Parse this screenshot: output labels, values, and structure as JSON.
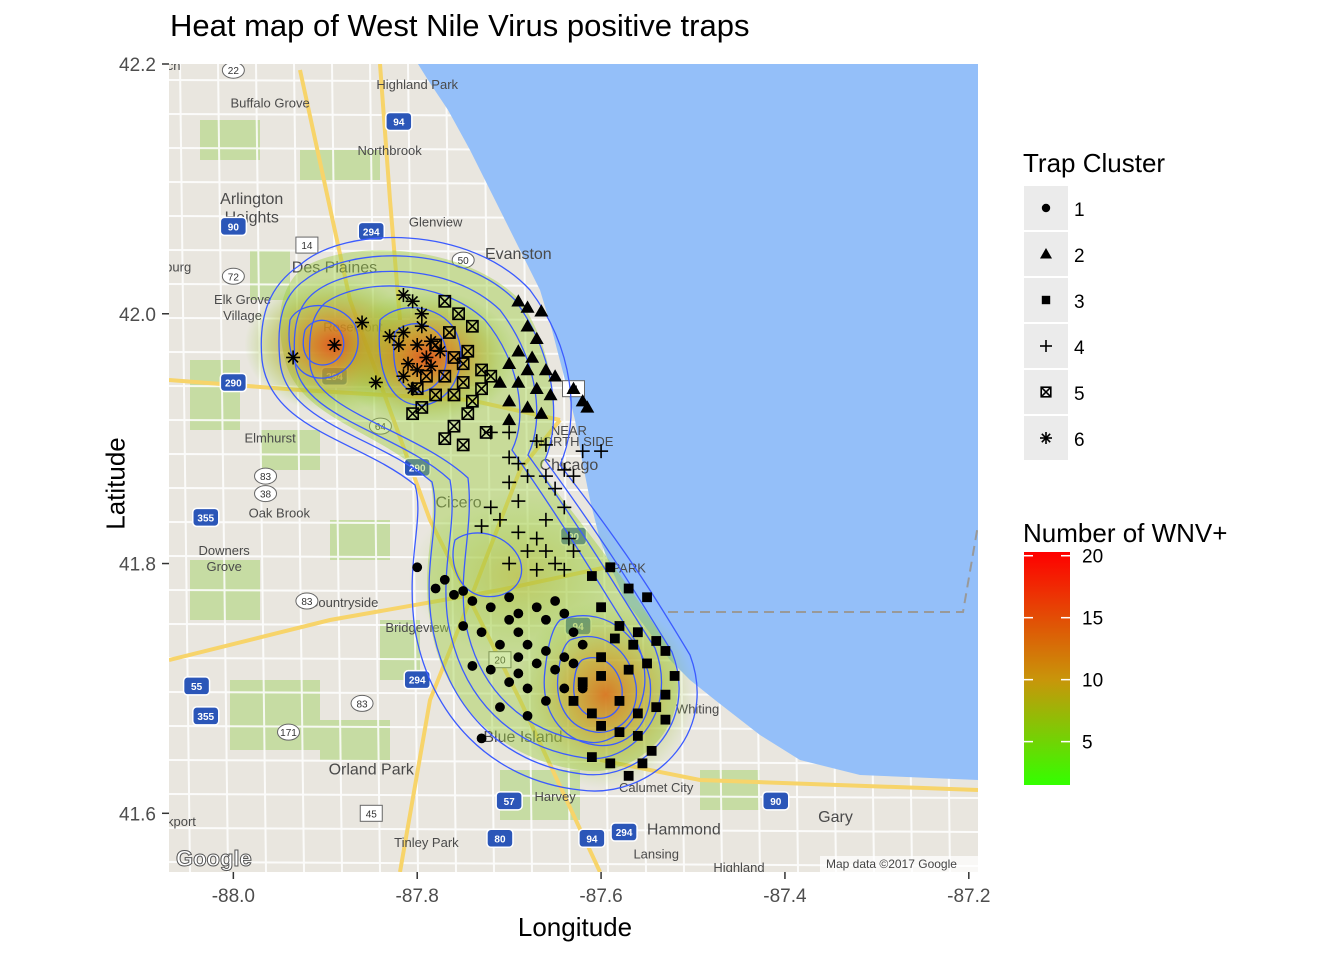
{
  "title": "Heat map of West Nile Virus positive traps",
  "chart_data": {
    "type": "scatter",
    "overlay": "density-heatmap-on-road-map",
    "xlabel": "Longitude",
    "ylabel": "Latitude",
    "xlim": [
      -88.07,
      -87.19
    ],
    "ylim": [
      41.553,
      42.2
    ],
    "x_ticks": [
      -88.0,
      -87.8,
      -87.6,
      -87.4,
      -87.2
    ],
    "x_tick_labels": [
      "-88.0",
      "-87.8",
      "-87.6",
      "-87.4",
      "-87.2"
    ],
    "y_ticks": [
      41.6,
      41.8,
      42.0,
      42.2
    ],
    "y_tick_labels": [
      "41.6",
      "41.8",
      "42.0",
      "42.2"
    ],
    "grid": false,
    "legend_shape": {
      "title": "Trap Cluster",
      "position": "right",
      "entries": [
        {
          "label": "1",
          "shape": "circle"
        },
        {
          "label": "2",
          "shape": "triangle"
        },
        {
          "label": "3",
          "shape": "square"
        },
        {
          "label": "4",
          "shape": "plus"
        },
        {
          "label": "5",
          "shape": "boxed-x"
        },
        {
          "label": "6",
          "shape": "asterisk"
        }
      ]
    },
    "legend_fill": {
      "title": "Number of WNV+",
      "position": "right",
      "min": 1.5,
      "max": 20.3,
      "ticks": [
        5,
        10,
        15,
        20
      ],
      "tick_labels": [
        "5",
        "10",
        "15",
        "20"
      ],
      "low_color": "#33ff00",
      "mid_color": "#c8960a",
      "high_color": "#ff0000"
    },
    "hotspots": [
      {
        "lon": -87.89,
        "lat": 41.975,
        "peak": 18
      },
      {
        "lon": -87.79,
        "lat": 41.965,
        "peak": 17
      },
      {
        "lon": -87.595,
        "lat": 41.695,
        "peak": 16
      },
      {
        "lon": -87.69,
        "lat": 41.79,
        "peak": 6
      }
    ],
    "series": [
      {
        "name": "1",
        "shape": "circle",
        "points": [
          [
            -87.8,
            41.797
          ],
          [
            -87.78,
            41.78
          ],
          [
            -87.77,
            41.787
          ],
          [
            -87.76,
            41.775
          ],
          [
            -87.75,
            41.778
          ],
          [
            -87.74,
            41.77
          ],
          [
            -87.72,
            41.765
          ],
          [
            -87.7,
            41.773
          ],
          [
            -87.69,
            41.76
          ],
          [
            -87.67,
            41.765
          ],
          [
            -87.66,
            41.755
          ],
          [
            -87.65,
            41.77
          ],
          [
            -87.64,
            41.76
          ],
          [
            -87.63,
            41.745
          ],
          [
            -87.62,
            41.735
          ],
          [
            -87.75,
            41.75
          ],
          [
            -87.73,
            41.745
          ],
          [
            -87.71,
            41.735
          ],
          [
            -87.69,
            41.725
          ],
          [
            -87.67,
            41.72
          ],
          [
            -87.65,
            41.715
          ],
          [
            -87.63,
            41.72
          ],
          [
            -87.72,
            41.715
          ],
          [
            -87.7,
            41.705
          ],
          [
            -87.68,
            41.7
          ],
          [
            -87.66,
            41.69
          ],
          [
            -87.64,
            41.7
          ],
          [
            -87.74,
            41.718
          ],
          [
            -87.69,
            41.745
          ],
          [
            -87.68,
            41.735
          ],
          [
            -87.71,
            41.685
          ],
          [
            -87.68,
            41.678
          ],
          [
            -87.73,
            41.66
          ],
          [
            -87.62,
            41.7
          ],
          [
            -87.7,
            41.755
          ],
          [
            -87.66,
            41.73
          ],
          [
            -87.64,
            41.725
          ],
          [
            -87.69,
            41.712
          ]
        ]
      },
      {
        "name": "2",
        "shape": "triangle",
        "points": [
          [
            -87.69,
            42.01
          ],
          [
            -87.68,
            42.005
          ],
          [
            -87.665,
            42.002
          ],
          [
            -87.68,
            41.99
          ],
          [
            -87.67,
            41.98
          ],
          [
            -87.69,
            41.97
          ],
          [
            -87.7,
            41.96
          ],
          [
            -87.68,
            41.955
          ],
          [
            -87.66,
            41.955
          ],
          [
            -87.65,
            41.95
          ],
          [
            -87.69,
            41.945
          ],
          [
            -87.67,
            41.94
          ],
          [
            -87.655,
            41.935
          ],
          [
            -87.7,
            41.93
          ],
          [
            -87.68,
            41.925
          ],
          [
            -87.665,
            41.92
          ],
          [
            -87.7,
            41.915
          ],
          [
            -87.63,
            41.94
          ],
          [
            -87.62,
            41.93
          ],
          [
            -87.615,
            41.925
          ],
          [
            -87.71,
            41.945
          ],
          [
            -87.675,
            41.965
          ]
        ]
      },
      {
        "name": "3",
        "shape": "square",
        "points": [
          [
            -87.61,
            41.79
          ],
          [
            -87.59,
            41.797
          ],
          [
            -87.57,
            41.78
          ],
          [
            -87.55,
            41.773
          ],
          [
            -87.6,
            41.765
          ],
          [
            -87.58,
            41.75
          ],
          [
            -87.56,
            41.745
          ],
          [
            -87.54,
            41.738
          ],
          [
            -87.53,
            41.73
          ],
          [
            -87.55,
            41.72
          ],
          [
            -87.57,
            41.715
          ],
          [
            -87.52,
            41.71
          ],
          [
            -87.53,
            41.695
          ],
          [
            -87.54,
            41.685
          ],
          [
            -87.56,
            41.68
          ],
          [
            -87.58,
            41.69
          ],
          [
            -87.6,
            41.71
          ],
          [
            -87.62,
            41.705
          ],
          [
            -87.63,
            41.69
          ],
          [
            -87.61,
            41.68
          ],
          [
            -87.6,
            41.67
          ],
          [
            -87.58,
            41.665
          ],
          [
            -87.56,
            41.662
          ],
          [
            -87.545,
            41.65
          ],
          [
            -87.555,
            41.64
          ],
          [
            -87.57,
            41.63
          ],
          [
            -87.59,
            41.64
          ],
          [
            -87.61,
            41.645
          ],
          [
            -87.6,
            41.725
          ],
          [
            -87.565,
            41.735
          ],
          [
            -87.585,
            41.74
          ],
          [
            -87.53,
            41.675
          ]
        ]
      },
      {
        "name": "4",
        "shape": "plus",
        "points": [
          [
            -87.7,
            41.885
          ],
          [
            -87.69,
            41.88
          ],
          [
            -87.68,
            41.87
          ],
          [
            -87.66,
            41.87
          ],
          [
            -87.65,
            41.86
          ],
          [
            -87.64,
            41.875
          ],
          [
            -87.63,
            41.87
          ],
          [
            -87.62,
            41.89
          ],
          [
            -87.6,
            41.89
          ],
          [
            -87.66,
            41.895
          ],
          [
            -87.7,
            41.865
          ],
          [
            -87.69,
            41.85
          ],
          [
            -87.72,
            41.845
          ],
          [
            -87.73,
            41.83
          ],
          [
            -87.71,
            41.835
          ],
          [
            -87.69,
            41.825
          ],
          [
            -87.67,
            41.82
          ],
          [
            -87.66,
            41.835
          ],
          [
            -87.64,
            41.845
          ],
          [
            -87.635,
            41.82
          ],
          [
            -87.68,
            41.81
          ],
          [
            -87.66,
            41.81
          ],
          [
            -87.65,
            41.8
          ],
          [
            -87.63,
            41.81
          ],
          [
            -87.7,
            41.8
          ],
          [
            -87.67,
            41.795
          ],
          [
            -87.64,
            41.795
          ],
          [
            -87.72,
            41.905
          ],
          [
            -87.7,
            41.905
          ],
          [
            -87.67,
            41.898
          ]
        ]
      },
      {
        "name": "5",
        "shape": "boxed-x",
        "points": [
          [
            -87.77,
            42.01
          ],
          [
            -87.755,
            42.0
          ],
          [
            -87.765,
            41.985
          ],
          [
            -87.74,
            41.99
          ],
          [
            -87.78,
            41.975
          ],
          [
            -87.76,
            41.965
          ],
          [
            -87.745,
            41.97
          ],
          [
            -87.73,
            41.955
          ],
          [
            -87.77,
            41.95
          ],
          [
            -87.75,
            41.945
          ],
          [
            -87.79,
            41.95
          ],
          [
            -87.8,
            41.94
          ],
          [
            -87.78,
            41.935
          ],
          [
            -87.76,
            41.935
          ],
          [
            -87.74,
            41.93
          ],
          [
            -87.72,
            41.95
          ],
          [
            -87.73,
            41.94
          ],
          [
            -87.745,
            41.92
          ],
          [
            -87.76,
            41.91
          ],
          [
            -87.795,
            41.925
          ],
          [
            -87.805,
            41.92
          ],
          [
            -87.77,
            41.9
          ],
          [
            -87.75,
            41.895
          ],
          [
            -87.725,
            41.905
          ],
          [
            -87.75,
            41.96
          ]
        ]
      },
      {
        "name": "6",
        "shape": "asterisk",
        "points": [
          [
            -87.935,
            41.965
          ],
          [
            -87.89,
            41.975
          ],
          [
            -87.86,
            41.993
          ],
          [
            -87.815,
            42.015
          ],
          [
            -87.805,
            42.01
          ],
          [
            -87.795,
            42.0
          ],
          [
            -87.815,
            41.985
          ],
          [
            -87.8,
            41.975
          ],
          [
            -87.785,
            41.978
          ],
          [
            -87.79,
            41.965
          ],
          [
            -87.775,
            41.97
          ],
          [
            -87.82,
            41.975
          ],
          [
            -87.83,
            41.982
          ],
          [
            -87.81,
            41.96
          ],
          [
            -87.8,
            41.955
          ],
          [
            -87.785,
            41.958
          ],
          [
            -87.815,
            41.95
          ],
          [
            -87.845,
            41.945
          ],
          [
            -87.795,
            41.99
          ],
          [
            -87.805,
            41.94
          ]
        ]
      }
    ]
  },
  "map": {
    "place_labels": [
      {
        "text": "Highland Park",
        "lon": -87.8,
        "lat": 42.18
      },
      {
        "text": "Buffalo Grove",
        "lon": -87.96,
        "lat": 42.165
      },
      {
        "text": "Northbrook",
        "lon": -87.83,
        "lat": 42.127
      },
      {
        "text": "Arlington",
        "lon": -87.98,
        "lat": 42.088
      },
      {
        "text": "Heights",
        "lon": -87.98,
        "lat": 42.073
      },
      {
        "text": "Glenview",
        "lon": -87.78,
        "lat": 42.07
      },
      {
        "text": "Des Plaines",
        "lon": -87.89,
        "lat": 42.033
      },
      {
        "text": "Evanston",
        "lon": -87.69,
        "lat": 42.044
      },
      {
        "text": "Elk Grove",
        "lon": -87.99,
        "lat": 42.008
      },
      {
        "text": "Village",
        "lon": -87.99,
        "lat": 41.995
      },
      {
        "text": "Rosemont",
        "lon": -87.87,
        "lat": 41.986
      },
      {
        "text": "Elmhurst",
        "lon": -87.96,
        "lat": 41.897
      },
      {
        "text": "NEAR",
        "lon": -87.635,
        "lat": 41.903
      },
      {
        "text": "NORTH SIDE",
        "lon": -87.63,
        "lat": 41.894
      },
      {
        "text": "Chicago",
        "lon": -87.635,
        "lat": 41.875
      },
      {
        "text": "Oak Brook",
        "lon": -87.95,
        "lat": 41.837
      },
      {
        "text": "Cicero",
        "lon": -87.755,
        "lat": 41.845
      },
      {
        "text": "Downers",
        "lon": -88.01,
        "lat": 41.807
      },
      {
        "text": "Grove",
        "lon": -88.01,
        "lat": 41.794
      },
      {
        "text": "Countryside",
        "lon": -87.88,
        "lat": 41.765
      },
      {
        "text": "Bridgeview",
        "lon": -87.8,
        "lat": 41.745
      },
      {
        "text": "PARK",
        "lon": -87.57,
        "lat": 41.793
      },
      {
        "text": "Whiting",
        "lon": -87.495,
        "lat": 41.68
      },
      {
        "text": "Blue Island",
        "lon": -87.685,
        "lat": 41.657
      },
      {
        "text": "Orland Park",
        "lon": -87.85,
        "lat": 41.631
      },
      {
        "text": "Calumet City",
        "lon": -87.54,
        "lat": 41.617
      },
      {
        "text": "Harvey",
        "lon": -87.65,
        "lat": 41.61
      },
      {
        "text": "Gary",
        "lon": -87.345,
        "lat": 41.593
      },
      {
        "text": "Hammond",
        "lon": -87.51,
        "lat": 41.583
      },
      {
        "text": "Tinley Park",
        "lon": -87.79,
        "lat": 41.573
      },
      {
        "text": "Lansing",
        "lon": -87.54,
        "lat": 41.564
      },
      {
        "text": "Highland",
        "lon": -87.45,
        "lat": 41.553
      },
      {
        "text": "ckport",
        "lon": -88.06,
        "lat": 41.59
      },
      {
        "text": "burg",
        "lon": -88.06,
        "lat": 42.034
      },
      {
        "text": "ch",
        "lon": -88.065,
        "lat": 42.195
      }
    ],
    "road_shields": [
      {
        "text": "22",
        "lon": -88.0,
        "lat": 42.195,
        "kind": "state"
      },
      {
        "text": "94",
        "lon": -87.82,
        "lat": 42.154,
        "kind": "interstate"
      },
      {
        "text": "294",
        "lon": -87.85,
        "lat": 42.066,
        "kind": "interstate"
      },
      {
        "text": "14",
        "lon": -87.92,
        "lat": 42.055,
        "kind": "us"
      },
      {
        "text": "90",
        "lon": -88.0,
        "lat": 42.07,
        "kind": "interstate"
      },
      {
        "text": "72",
        "lon": -88.0,
        "lat": 42.03,
        "kind": "state"
      },
      {
        "text": "50",
        "lon": -87.75,
        "lat": 42.043,
        "kind": "state"
      },
      {
        "text": "290",
        "lon": -88.0,
        "lat": 41.945,
        "kind": "interstate"
      },
      {
        "text": "294",
        "lon": -87.89,
        "lat": 41.95,
        "kind": "interstate"
      },
      {
        "text": "64",
        "lon": -87.84,
        "lat": 41.91,
        "kind": "state"
      },
      {
        "text": "41",
        "lon": -87.63,
        "lat": 41.94,
        "kind": "us"
      },
      {
        "text": "290",
        "lon": -87.8,
        "lat": 41.877,
        "kind": "interstate"
      },
      {
        "text": "83",
        "lon": -87.965,
        "lat": 41.87,
        "kind": "state"
      },
      {
        "text": "38",
        "lon": -87.965,
        "lat": 41.856,
        "kind": "state"
      },
      {
        "text": "355",
        "lon": -88.03,
        "lat": 41.837,
        "kind": "interstate"
      },
      {
        "text": "90",
        "lon": -87.63,
        "lat": 41.822,
        "kind": "interstate"
      },
      {
        "text": "83",
        "lon": -87.92,
        "lat": 41.77,
        "kind": "state"
      },
      {
        "text": "94",
        "lon": -87.625,
        "lat": 41.75,
        "kind": "interstate"
      },
      {
        "text": "20",
        "lon": -87.71,
        "lat": 41.723,
        "kind": "us"
      },
      {
        "text": "294",
        "lon": -87.8,
        "lat": 41.707,
        "kind": "interstate"
      },
      {
        "text": "55",
        "lon": -88.04,
        "lat": 41.702,
        "kind": "interstate"
      },
      {
        "text": "83",
        "lon": -87.86,
        "lat": 41.688,
        "kind": "state"
      },
      {
        "text": "355",
        "lon": -88.03,
        "lat": 41.678,
        "kind": "interstate"
      },
      {
        "text": "171",
        "lon": -87.94,
        "lat": 41.665,
        "kind": "state"
      },
      {
        "text": "45",
        "lon": -87.85,
        "lat": 41.6,
        "kind": "us"
      },
      {
        "text": "57",
        "lon": -87.7,
        "lat": 41.61,
        "kind": "interstate"
      },
      {
        "text": "90",
        "lon": -87.41,
        "lat": 41.61,
        "kind": "interstate"
      },
      {
        "text": "294",
        "lon": -87.575,
        "lat": 41.585,
        "kind": "interstate"
      },
      {
        "text": "80",
        "lon": -87.71,
        "lat": 41.58,
        "kind": "interstate"
      },
      {
        "text": "94",
        "lon": -87.61,
        "lat": 41.58,
        "kind": "interstate"
      }
    ],
    "logo_text": "Google",
    "attribution": "Map data ©2017 Google"
  }
}
